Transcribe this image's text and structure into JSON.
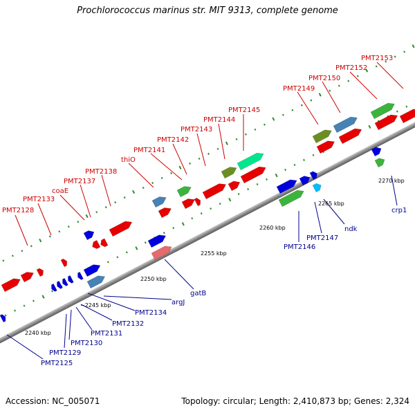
{
  "map": {
    "title": "Prochlorococcus marinus str. MIT 9313, complete genome",
    "accession": "Accession: NC_005071",
    "summary": "Topology: circular; Length: 2,410,873 bp; Genes: 2,324"
  },
  "scale_labels": [
    {
      "id": "kbp-2240",
      "text": "2240 kbp"
    },
    {
      "id": "kbp-2245",
      "text": "~2245 kbp"
    },
    {
      "id": "kbp-2250",
      "text": "2250 kbp"
    },
    {
      "id": "kbp-2255",
      "text": "2255 kbp"
    },
    {
      "id": "kbp-2260",
      "text": "2260 kbp"
    },
    {
      "id": "kbp-2265",
      "text": "2265 kbp"
    },
    {
      "id": "kbp-2270",
      "text": "2270 kbp"
    }
  ],
  "genes_top": [
    {
      "id": "pmt2128",
      "text": "PMT2128"
    },
    {
      "id": "pmt2133",
      "text": "PMT2133"
    },
    {
      "id": "coae",
      "text": "coaE"
    },
    {
      "id": "pmt2137",
      "text": "PMT2137"
    },
    {
      "id": "pmt2138",
      "text": "PMT2138"
    },
    {
      "id": "thio",
      "text": "thiO"
    },
    {
      "id": "pmt2141",
      "text": "PMT2141"
    },
    {
      "id": "pmt2142",
      "text": "PMT2142"
    },
    {
      "id": "pmt2143",
      "text": "PMT2143"
    },
    {
      "id": "pmt2144",
      "text": "PMT2144"
    },
    {
      "id": "pmt2145",
      "text": "PMT2145"
    },
    {
      "id": "pmt2149",
      "text": "PMT2149"
    },
    {
      "id": "pmt2150",
      "text": "PMT2150"
    },
    {
      "id": "pmt2152",
      "text": "PMT2152"
    },
    {
      "id": "pmt2153",
      "text": "PMT2153"
    }
  ],
  "genes_bottom": [
    {
      "id": "pmt2125",
      "text": "PMT2125"
    },
    {
      "id": "pmt2129",
      "text": "PMT2129"
    },
    {
      "id": "pmt2130",
      "text": "PMT2130"
    },
    {
      "id": "pmt2131",
      "text": "PMT2131"
    },
    {
      "id": "pmt2132",
      "text": "PMT2132"
    },
    {
      "id": "pmt2134",
      "text": "PMT2134"
    },
    {
      "id": "argj",
      "text": "argJ"
    },
    {
      "id": "gatb",
      "text": "gatB"
    },
    {
      "id": "pmt2146",
      "text": "PMT2146"
    },
    {
      "id": "pmt2147",
      "text": "PMT2147"
    },
    {
      "id": "ndk",
      "text": "ndk"
    },
    {
      "id": "crp1",
      "text": "crp1"
    }
  ],
  "colors": {
    "top_label": "#cc0000",
    "bottom_label": "#00008b",
    "backbone": "#8c8c8c",
    "tick": "#2e8b2e",
    "cds_red": "#e60000",
    "cds_blue": "#0000dd",
    "cds_steel": "#4682b4",
    "cds_green": "#3cb43c",
    "cds_olive": "#6b8e23",
    "cds_spring": "#00e68c",
    "cds_salmon": "#e66b6b",
    "cds_cyan": "#00bfff"
  }
}
